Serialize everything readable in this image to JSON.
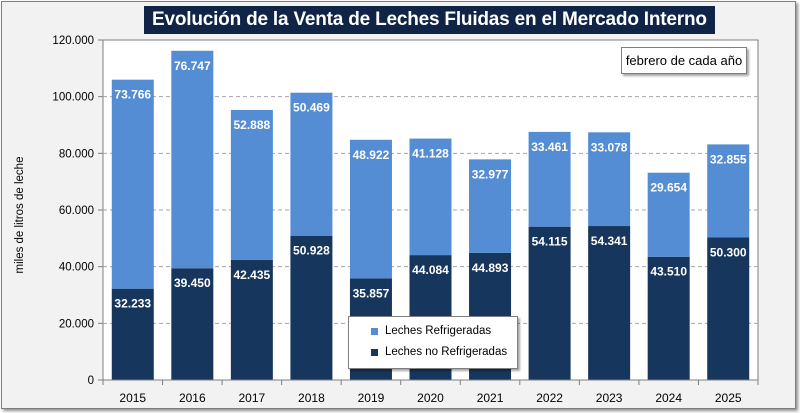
{
  "colors": {
    "refrigeradas": "#548dd4",
    "no_refrigeradas": "#17365d",
    "title_bg": "#0f2447",
    "grid": "#a6a6a6"
  },
  "chart_data": {
    "type": "bar",
    "stacked": true,
    "title": "Evolución de la Venta de Leches Fluidas en el Mercado Interno",
    "annotation": "febrero de cada año",
    "xlabel": "",
    "ylabel": "miles de litros de leche",
    "ylim": [
      0,
      120000
    ],
    "yticks": [
      0,
      20000,
      40000,
      60000,
      80000,
      100000,
      120000
    ],
    "ytick_labels": [
      "0",
      "20.000",
      "40.000",
      "60.000",
      "80.000",
      "100.000",
      "120.000"
    ],
    "grid": "horizontal-dashed",
    "legend_position": "bottom-center",
    "categories": [
      "2015",
      "2016",
      "2017",
      "2018",
      "2019",
      "2020",
      "2021",
      "2022",
      "2023",
      "2024",
      "2025"
    ],
    "series": [
      {
        "name": "Leches no Refrigeradas",
        "color": "#17365d",
        "values": [
          32233,
          39450,
          42435,
          50928,
          35857,
          44084,
          44893,
          54115,
          54341,
          43510,
          50300
        ],
        "labels": [
          "32.233",
          "39.450",
          "42.435",
          "50.928",
          "35.857",
          "44.084",
          "44.893",
          "54.115",
          "54.341",
          "43.510",
          "50.300"
        ]
      },
      {
        "name": "Leches Refrigeradas",
        "color": "#548dd4",
        "values": [
          73766,
          76747,
          52888,
          50469,
          48922,
          41128,
          32977,
          33461,
          33078,
          29654,
          32855
        ],
        "labels": [
          "73.766",
          "76.747",
          "52.888",
          "50.469",
          "48.922",
          "41.128",
          "32.977",
          "33.461",
          "33.078",
          "29.654",
          "32.855"
        ]
      }
    ]
  }
}
